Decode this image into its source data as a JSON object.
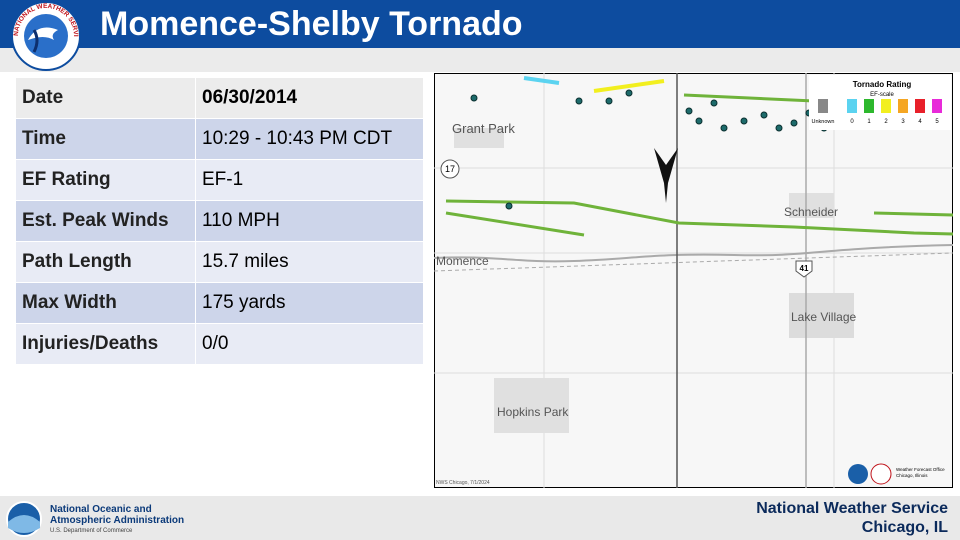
{
  "header": {
    "title": "Momence-Shelby Tornado",
    "logo_text": "NATIONAL WEATHER SERVICE"
  },
  "table": {
    "rows": [
      [
        "Date",
        "06/30/2014"
      ],
      [
        "Time",
        "10:29 - 10:43 PM CDT"
      ],
      [
        "EF Rating",
        "EF-1"
      ],
      [
        "Est. Peak Winds",
        "110 MPH"
      ],
      [
        "Path Length",
        "15.7 miles"
      ],
      [
        "Max Width",
        "175 yards"
      ],
      [
        "Injuries/Deaths",
        "0/0"
      ]
    ]
  },
  "map": {
    "places": [
      "Grant Park",
      "Momence",
      "Schneider",
      "Lake Village",
      "Hopkins Park"
    ],
    "routes": [
      "17",
      "41"
    ],
    "legend": {
      "title": "Tornado Rating",
      "subtitle": "EF-scale",
      "unknown": "Unknown",
      "items": [
        {
          "label": "0",
          "color": "#5bd3f0"
        },
        {
          "label": "1",
          "color": "#2db82d"
        },
        {
          "label": "2",
          "color": "#f2ef1f"
        },
        {
          "label": "3",
          "color": "#f5a623"
        },
        {
          "label": "4",
          "color": "#e8202a"
        },
        {
          "label": "5",
          "color": "#e82ad9"
        }
      ]
    },
    "credit": "NWS Chicago, 7/1/2024",
    "office": [
      "Weather Forecast Office",
      "Chicago, Illinois"
    ]
  },
  "footer": {
    "noaa": [
      "National Oceanic and",
      "Atmospheric Administration"
    ],
    "doc": "U.S. Department of Commerce",
    "nws": [
      "National Weather Service",
      "Chicago, IL"
    ]
  }
}
